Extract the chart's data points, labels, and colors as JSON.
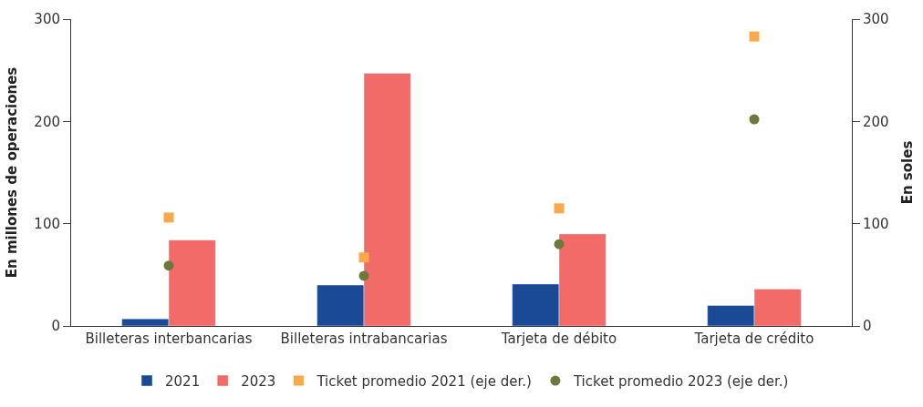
{
  "chart_data": {
    "type": "bar",
    "ylabel": "En millones de operaciones",
    "y2label": "En soles",
    "categories": [
      "Billeteras interbancarias",
      "Billeteras intrabancarias",
      "Tarjeta de débito",
      "Tarjeta de crédito"
    ],
    "series": [
      {
        "name": "2021",
        "color": "#1a4a96",
        "values": [
          7,
          40,
          41,
          20
        ]
      },
      {
        "name": "2023",
        "color": "#f26b68",
        "values": [
          84,
          247,
          90,
          36
        ]
      },
      {
        "name": "Ticket promedio 2021 (eje der.)",
        "type": "scatter",
        "marker": "square",
        "axis": "y2",
        "color": "#f9a94b",
        "values": [
          106,
          67,
          115,
          283
        ]
      },
      {
        "name": "Ticket promedio 2023 (eje der.)",
        "type": "scatter",
        "marker": "circle",
        "axis": "y2",
        "color": "#6b7a3a",
        "values": [
          59,
          49,
          80,
          202
        ]
      }
    ],
    "ylim": [
      0,
      300
    ],
    "yticks": [
      0,
      100,
      200,
      300
    ],
    "y2lim": [
      0,
      300
    ],
    "y2ticks": [
      0,
      100,
      200,
      300
    ],
    "legend": "bottom"
  }
}
